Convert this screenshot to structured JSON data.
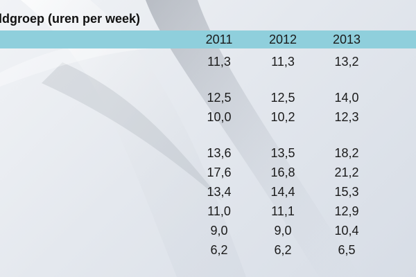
{
  "title": "ldgroep (uren per week)",
  "colors": {
    "header_band": "#8fcfdc",
    "text": "#1a1a1a"
  },
  "table": {
    "years": [
      "2011",
      "2012",
      "2013"
    ],
    "rows": [
      [
        "11,3",
        "11,3",
        "13,2"
      ],
      [
        "12,5",
        "12,5",
        "14,0"
      ],
      [
        "10,0",
        "10,2",
        "12,3"
      ],
      [
        "13,6",
        "13,5",
        "18,2"
      ],
      [
        "17,6",
        "16,8",
        "21,2"
      ],
      [
        "13,4",
        "14,4",
        "15,3"
      ],
      [
        "11,0",
        "11,1",
        "12,9"
      ],
      [
        "9,0",
        "9,0",
        "10,4"
      ],
      [
        "6,2",
        "6,2",
        "6,5"
      ]
    ]
  }
}
